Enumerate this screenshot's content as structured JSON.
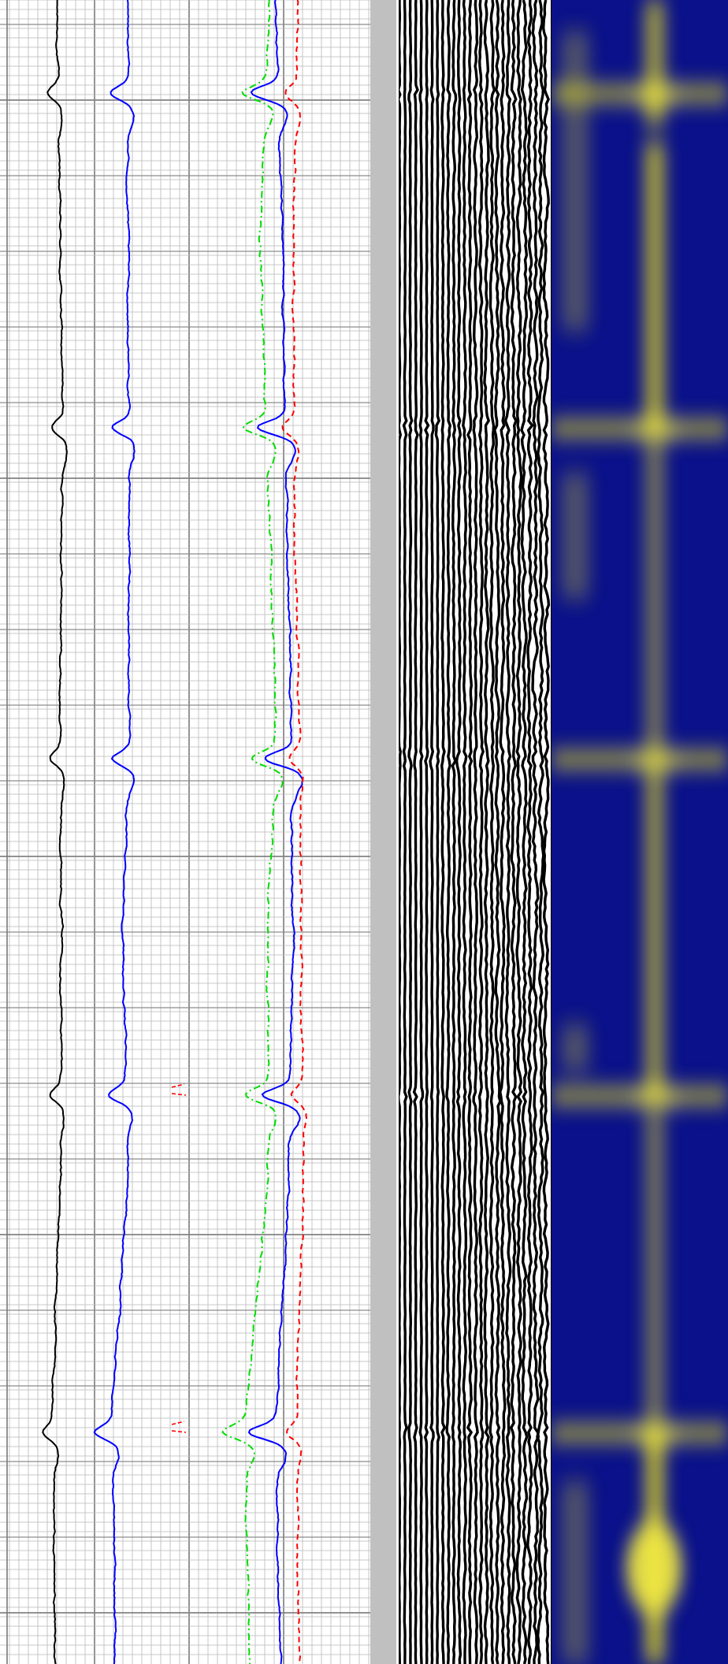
{
  "chart_data": {
    "type": "line",
    "title": "",
    "xlabel": "",
    "ylabel": "",
    "grid": true,
    "legend": "none",
    "depth_range": [
      0,
      2112
    ],
    "anomaly_depths": [
      118,
      543,
      963,
      1390,
      1818
    ],
    "tracks": [
      {
        "name": "",
        "kind": "curves",
        "series": [
          {
            "name": "",
            "color": "#000000",
            "style": "solid",
            "baseline": 78,
            "dip": 14,
            "drift": [
              [
                0,
                72
              ],
              [
                300,
                76
              ],
              [
                600,
                80
              ],
              [
                900,
                76
              ],
              [
                1200,
                79
              ],
              [
                1500,
                76
              ],
              [
                1800,
                66
              ],
              [
                2112,
                70
              ]
            ]
          },
          {
            "name": "",
            "color": "#0000ff",
            "style": "solid",
            "baseline": 162,
            "dip": 22,
            "drift": [
              [
                0,
                162
              ],
              [
                300,
                162
              ],
              [
                600,
                164
              ],
              [
                900,
                164
              ],
              [
                1200,
                156
              ],
              [
                1500,
                162
              ],
              [
                1800,
                142
              ],
              [
                2112,
                146
              ]
            ]
          },
          {
            "name": "",
            "color": "#00dd00",
            "style": "dashdot",
            "baseline": 348,
            "dip": 30,
            "drift": [
              [
                0,
                342
              ],
              [
                300,
                330
              ],
              [
                600,
                340
              ],
              [
                900,
                350
              ],
              [
                1200,
                340
              ],
              [
                1500,
                340
              ],
              [
                1800,
                312
              ],
              [
                2112,
                316
              ]
            ]
          },
          {
            "name": "",
            "color": "#0000ff",
            "style": "solid",
            "baseline": 365,
            "dip": 36,
            "drift": [
              [
                0,
                350
              ],
              [
                300,
                358
              ],
              [
                600,
                362
              ],
              [
                900,
                370
              ],
              [
                1200,
                372
              ],
              [
                1500,
                366
              ],
              [
                1800,
                350
              ],
              [
                2112,
                356
              ]
            ]
          },
          {
            "name": "",
            "color": "#ff0000",
            "style": "dashed",
            "baseline": 378,
            "dip": 14,
            "drift": [
              [
                0,
                378
              ],
              [
                300,
                372
              ],
              [
                600,
                374
              ],
              [
                900,
                380
              ],
              [
                1200,
                382
              ],
              [
                1500,
                386
              ],
              [
                1800,
                376
              ],
              [
                2112,
                380
              ]
            ]
          }
        ]
      },
      {
        "name": "",
        "kind": "depth-strip",
        "color": "#c0c0c0"
      },
      {
        "name": "",
        "kind": "wiggle-image"
      },
      {
        "name": "",
        "kind": "heatmap",
        "colors": {
          "low": "#0a118a",
          "high": "#e8e020"
        }
      }
    ]
  }
}
